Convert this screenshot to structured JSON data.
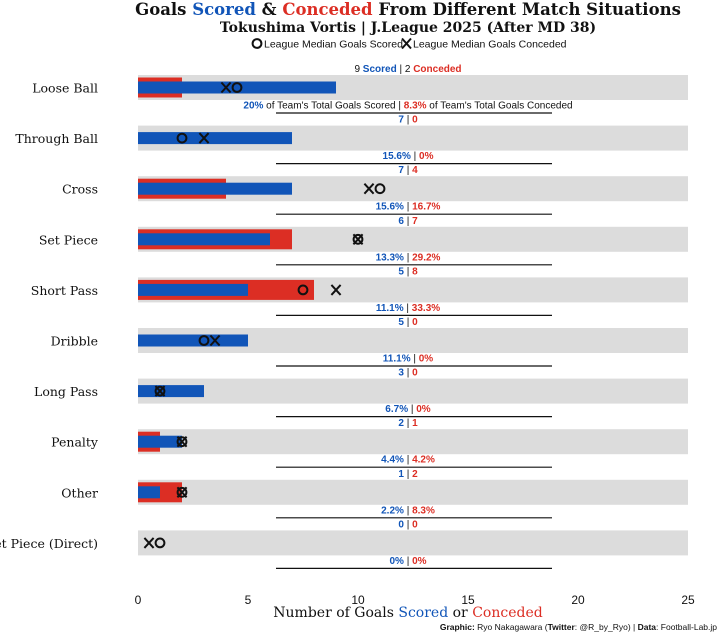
{
  "colors": {
    "scored": "#1155b8",
    "conceded": "#dc2e24",
    "track": "#dcdcdc",
    "text": "#111111"
  },
  "chart_data": {
    "type": "bar",
    "title": {
      "prefix": "Goals ",
      "scored_word": "Scored",
      "amp": " & ",
      "conceded_word": "Conceded",
      "suffix": " From Different Match Situations"
    },
    "subtitle": "Tokushima Vortis | J.League 2025 (After MD 38)",
    "legend": {
      "scored_marker_label": "League Median Goals Scored",
      "conceded_marker_label": "League Median Goals Conceded"
    },
    "xlabel": {
      "prefix": "Number of Goals ",
      "scored_word": "Scored",
      "mid": " or ",
      "conceded_word": "Conceded"
    },
    "xlim": [
      0,
      25
    ],
    "xticks": [
      "0",
      "5",
      "10",
      "15",
      "20",
      "25"
    ],
    "first_row_words": {
      "scored": "Scored",
      "conceded": "Conceded",
      "pct_scored_suffix": " of Team's Total Goals Scored",
      "pct_conceded_suffix": " of Team's Total Goals Conceded"
    },
    "categories": [
      "Loose Ball",
      "Through Ball",
      "Cross",
      "Set Piece",
      "Short Pass",
      "Dribble",
      "Long Pass",
      "Penalty",
      "Other",
      "Set Piece (Direct)"
    ],
    "series": [
      {
        "name": "Scored",
        "values": [
          9,
          7,
          7,
          6,
          5,
          5,
          3,
          2,
          1,
          0
        ]
      },
      {
        "name": "Conceded",
        "values": [
          2,
          0,
          4,
          7,
          8,
          0,
          0,
          1,
          2,
          0
        ]
      }
    ],
    "pct_scored": [
      "20%",
      "15.6%",
      "15.6%",
      "13.3%",
      "11.1%",
      "11.1%",
      "6.7%",
      "4.4%",
      "2.2%",
      "0%"
    ],
    "pct_conceded": [
      "8.3%",
      "0%",
      "16.7%",
      "29.2%",
      "33.3%",
      "0%",
      "0%",
      "4.2%",
      "8.3%",
      "0%"
    ],
    "league_median_scored": [
      4.5,
      2,
      11,
      10,
      7.5,
      3,
      1,
      2,
      2,
      1
    ],
    "league_median_conceded": [
      4,
      3,
      10.5,
      10,
      9,
      3.5,
      1,
      2,
      2,
      0.5
    ]
  },
  "credit": {
    "graphic_label": "Graphic:",
    "graphic_author": " Ryo Nakagawara (",
    "twitter_label": "Twitter",
    "twitter_handle": ": @R_by_Ryo) | ",
    "data_label": "Data",
    "data_source": ": Football-Lab.jp"
  }
}
